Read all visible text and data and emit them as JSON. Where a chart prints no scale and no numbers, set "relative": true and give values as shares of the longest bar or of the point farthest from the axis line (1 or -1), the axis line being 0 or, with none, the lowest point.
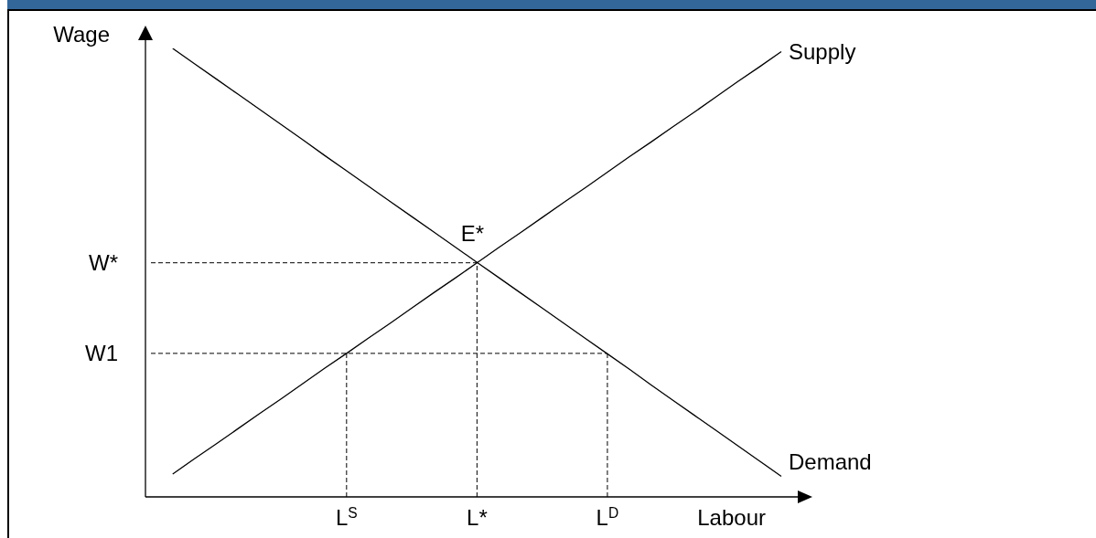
{
  "chart_data": {
    "type": "line",
    "relative": true,
    "xlabel": "Labour",
    "ylabel": "Wage",
    "categories": [
      null,
      null,
      null,
      null,
      null,
      null,
      null,
      null,
      null,
      "L$^{S}$",
      null,
      null,
      null,
      null,
      null,
      "L*",
      null,
      null,
      null,
      null,
      null,
      "L$^{D}$",
      null,
      null,
      null,
      null,
      null,
      null,
      null,
      null
    ],
    "series": [
      {
        "name": "Supply",
        "color": "#000000",
        "values": [
          null,
          0.051,
          0.085,
          0.118,
          0.152,
          0.186,
          0.219,
          0.253,
          0.287,
          0.32,
          0.354,
          0.387,
          0.421,
          0.455,
          0.488,
          0.522,
          0.556,
          0.589,
          0.623,
          0.657,
          0.69,
          0.724,
          0.758,
          0.791,
          0.825,
          0.858,
          0.892,
          0.926,
          0.959,
          0.993
        ]
      },
      {
        "name": "Demand",
        "color": "#000000",
        "values": [
          null,
          1.0,
          0.966,
          0.932,
          0.898,
          0.864,
          0.83,
          0.796,
          0.761,
          0.727,
          0.693,
          0.659,
          0.625,
          0.591,
          0.557,
          0.523,
          0.489,
          0.455,
          0.421,
          0.387,
          0.353,
          0.319,
          0.285,
          0.25,
          0.216,
          0.182,
          0.148,
          0.114,
          0.08,
          0.046
        ]
      }
    ],
    "ref_lines": [
      {
        "axis": "y",
        "value": 0.522,
        "label": "W*",
        "color": "#000000",
        "line_style": "dashed"
      },
      {
        "axis": "y",
        "value": 0.32,
        "label": "W1",
        "color": "#000000",
        "line_style": "dashed"
      },
      {
        "axis": "x",
        "value": "L$^{S}$",
        "color": "#000000",
        "line_style": "dashed"
      },
      {
        "axis": "x",
        "value": "L*",
        "color": "#000000",
        "line_style": "dashed"
      },
      {
        "axis": "x",
        "value": "L$^{D}$",
        "color": "#000000",
        "line_style": "dashed"
      }
    ],
    "annotations": [
      {
        "text": "E*",
        "x": "L*",
        "y": 0.522
      }
    ],
    "legend": false,
    "grid": false,
    "marker": "none",
    "line_style": "solid"
  }
}
